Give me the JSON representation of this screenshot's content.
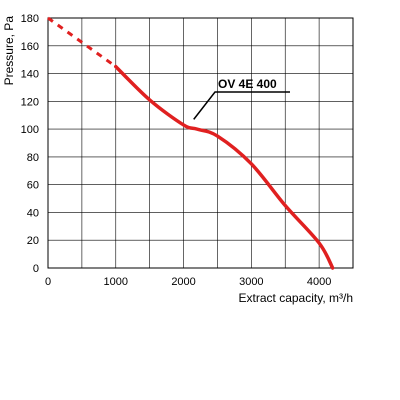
{
  "chart_data": {
    "type": "line",
    "title": "",
    "xlabel": "Extract capacity, m³/h",
    "ylabel": "Pressure, Pa",
    "xlim": [
      0,
      4500
    ],
    "ylim": [
      0,
      180
    ],
    "grid": true,
    "x_ticks": [
      0,
      1000,
      2000,
      3000,
      4000
    ],
    "y_ticks": [
      0,
      20,
      40,
      60,
      80,
      100,
      120,
      140,
      160,
      180
    ],
    "x_tick_labels": [
      "0",
      "1000",
      "2000",
      "3000",
      "4000"
    ],
    "y_tick_labels": [
      "0",
      "20",
      "40",
      "60",
      "80",
      "100",
      "120",
      "140",
      "160",
      "180"
    ],
    "series": [
      {
        "name": "OV 4E 400",
        "color": "#e02020",
        "dashed_segment": {
          "x": [
            0,
            1000
          ],
          "y": [
            180,
            145
          ]
        },
        "x": [
          1000,
          1500,
          2000,
          2200,
          2500,
          3000,
          3500,
          4000,
          4200
        ],
        "y": [
          145,
          121,
          103,
          100,
          95,
          75,
          45,
          18,
          0
        ]
      }
    ],
    "annotation": {
      "text": "OV 4E 400",
      "target": [
        2150,
        107
      ]
    }
  }
}
